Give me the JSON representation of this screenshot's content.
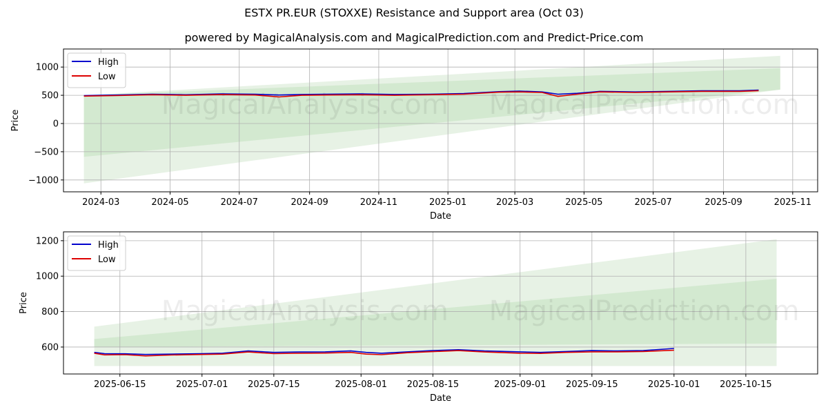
{
  "title": "ESTX PR.EUR (STOXXE) Resistance and Support area (Oct 03)",
  "subtitle": "powered by MagicalAnalysis.com and MagicalPrediction.com and Predict-Price.com",
  "watermarks": [
    "MagicalAnalysis.com",
    "MagicalPrediction.com"
  ],
  "colors": {
    "high": "#0000cc",
    "low": "#dd0000",
    "band_light": "#e3f0e0",
    "band_dark": "#cce6c8",
    "grid": "#b0b0b0"
  },
  "chart_data": [
    {
      "type": "line",
      "xlabel": "Date",
      "ylabel": "Price",
      "xlim": [
        "2024-01-28",
        "2025-11-23"
      ],
      "ylim": [
        -1210,
        1320
      ],
      "yticks": [
        -1000,
        -500,
        0,
        500,
        1000
      ],
      "ytick_labels": [
        "−1000",
        "−500",
        "0",
        "500",
        "1000"
      ],
      "xticks": [
        "2024-03-01",
        "2024-05-01",
        "2024-07-01",
        "2024-09-01",
        "2024-11-01",
        "2025-01-01",
        "2025-03-01",
        "2025-05-01",
        "2025-07-01",
        "2025-09-01",
        "2025-11-01"
      ],
      "xtick_labels": [
        "2024-03",
        "2024-05",
        "2024-07",
        "2024-09",
        "2024-11",
        "2025-01",
        "2025-03",
        "2025-05",
        "2025-07",
        "2025-09",
        "2025-11"
      ],
      "grid": true,
      "legend": "top-left",
      "series": [
        {
          "name": "High",
          "x": [
            "2024-02-15",
            "2024-03-15",
            "2024-04-15",
            "2024-05-15",
            "2024-06-15",
            "2024-07-15",
            "2024-08-05",
            "2024-08-25",
            "2024-09-15",
            "2024-10-15",
            "2024-11-15",
            "2024-12-15",
            "2025-01-15",
            "2025-02-15",
            "2025-03-05",
            "2025-03-25",
            "2025-04-08",
            "2025-04-25",
            "2025-05-15",
            "2025-06-15",
            "2025-07-15",
            "2025-08-15",
            "2025-09-15",
            "2025-10-02"
          ],
          "y": [
            495,
            505,
            520,
            510,
            525,
            520,
            505,
            515,
            520,
            525,
            515,
            520,
            530,
            565,
            575,
            560,
            520,
            535,
            570,
            560,
            570,
            580,
            580,
            592
          ]
        },
        {
          "name": "Low",
          "x": [
            "2024-02-15",
            "2024-03-15",
            "2024-04-15",
            "2024-05-15",
            "2024-06-15",
            "2024-07-15",
            "2024-08-05",
            "2024-08-25",
            "2024-09-15",
            "2024-10-15",
            "2024-11-15",
            "2024-12-15",
            "2025-01-15",
            "2025-02-15",
            "2025-03-05",
            "2025-03-25",
            "2025-04-08",
            "2025-04-25",
            "2025-05-15",
            "2025-06-15",
            "2025-07-15",
            "2025-08-15",
            "2025-09-15",
            "2025-10-02"
          ],
          "y": [
            485,
            495,
            510,
            500,
            512,
            505,
            470,
            500,
            505,
            510,
            500,
            510,
            520,
            555,
            560,
            550,
            480,
            520,
            560,
            550,
            560,
            570,
            570,
            582
          ]
        }
      ],
      "bands": [
        {
          "x": [
            "2024-02-15",
            "2025-10-21"
          ],
          "upper": [
            500,
            1200
          ],
          "lower": [
            -1060,
            600
          ]
        },
        {
          "x": [
            "2024-02-15",
            "2025-10-21"
          ],
          "upper": [
            500,
            980
          ],
          "lower": [
            -590,
            600
          ]
        }
      ]
    },
    {
      "type": "line",
      "xlabel": "Date",
      "ylabel": "Price",
      "xlim": [
        "2025-06-04",
        "2025-10-29"
      ],
      "ylim": [
        448,
        1250
      ],
      "yticks": [
        600,
        800,
        1000,
        1200
      ],
      "ytick_labels": [
        "600",
        "800",
        "1000",
        "1200"
      ],
      "xticks": [
        "2025-06-15",
        "2025-07-01",
        "2025-07-15",
        "2025-08-01",
        "2025-08-15",
        "2025-09-01",
        "2025-09-15",
        "2025-10-01",
        "2025-10-15"
      ],
      "xtick_labels": [
        "2025-06-15",
        "2025-07-01",
        "2025-07-15",
        "2025-08-01",
        "2025-08-15",
        "2025-09-01",
        "2025-09-15",
        "2025-10-01",
        "2025-10-15"
      ],
      "grid": true,
      "legend": "top-left",
      "series": [
        {
          "name": "High",
          "x": [
            "2025-06-10",
            "2025-06-12",
            "2025-06-16",
            "2025-06-20",
            "2025-06-25",
            "2025-07-01",
            "2025-07-05",
            "2025-07-10",
            "2025-07-15",
            "2025-07-20",
            "2025-07-25",
            "2025-07-30",
            "2025-08-02",
            "2025-08-05",
            "2025-08-10",
            "2025-08-15",
            "2025-08-20",
            "2025-08-25",
            "2025-09-01",
            "2025-09-05",
            "2025-09-10",
            "2025-09-15",
            "2025-09-20",
            "2025-09-25",
            "2025-10-01"
          ],
          "y": [
            570,
            563,
            562,
            558,
            560,
            563,
            565,
            578,
            570,
            572,
            573,
            578,
            570,
            565,
            573,
            580,
            585,
            578,
            573,
            570,
            575,
            580,
            578,
            580,
            592
          ]
        },
        {
          "name": "Low",
          "x": [
            "2025-06-10",
            "2025-06-12",
            "2025-06-16",
            "2025-06-20",
            "2025-06-25",
            "2025-07-01",
            "2025-07-05",
            "2025-07-10",
            "2025-07-15",
            "2025-07-20",
            "2025-07-25",
            "2025-07-30",
            "2025-08-02",
            "2025-08-05",
            "2025-08-10",
            "2025-08-15",
            "2025-08-20",
            "2025-08-25",
            "2025-09-01",
            "2025-09-05",
            "2025-09-10",
            "2025-09-15",
            "2025-09-20",
            "2025-09-25",
            "2025-10-01"
          ],
          "y": [
            565,
            556,
            557,
            550,
            555,
            558,
            560,
            572,
            563,
            565,
            566,
            570,
            560,
            557,
            568,
            574,
            580,
            572,
            565,
            564,
            570,
            573,
            573,
            575,
            582
          ]
        }
      ],
      "bands": [
        {
          "x": [
            "2025-06-10",
            "2025-10-21"
          ],
          "upper": [
            715,
            1208
          ],
          "lower": [
            493,
            493
          ]
        },
        {
          "x": [
            "2025-06-10",
            "2025-10-21"
          ],
          "upper": [
            645,
            985
          ],
          "lower": [
            600,
            620
          ]
        }
      ]
    }
  ]
}
